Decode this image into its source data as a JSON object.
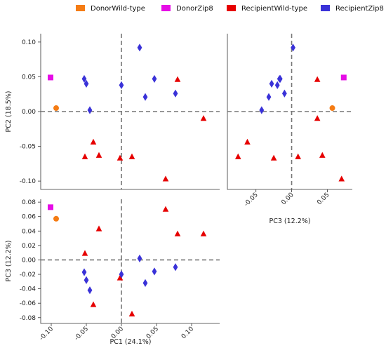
{
  "chart_data": {
    "type": "scatter",
    "legend": {
      "placement": "top",
      "entries": [
        {
          "label": "DonorWild-type",
          "color": "#f57c14",
          "marker": "circle"
        },
        {
          "label": "DonorZip8",
          "color": "#e60de6",
          "marker": "square"
        },
        {
          "label": "RecipientWild-type",
          "color": "#e60000",
          "marker": "triangle"
        },
        {
          "label": "RecipientZip8",
          "color": "#3a32d8",
          "marker": "diamond"
        }
      ]
    },
    "panels": [
      {
        "id": "pc1-pc2",
        "xlabel": "",
        "ylabel": "PC2 (18.5%)",
        "xlim": [
          -0.115,
          0.14
        ],
        "ylim": [
          -0.112,
          0.112
        ],
        "xticks": [],
        "yticks": [
          "-0.10",
          "-0.05",
          "0.00",
          "0.05",
          "0.10"
        ],
        "ytick_values": [
          -0.1,
          -0.05,
          0.0,
          0.05,
          0.1
        ],
        "zero_lines": true
      },
      {
        "id": "pc3-pc2",
        "xlabel": "PC3 (12.2%)",
        "ylabel": "",
        "xlim": [
          -0.09,
          0.085
        ],
        "ylim": [
          -0.112,
          0.112
        ],
        "xticks": [
          "-0.05",
          "0.00",
          "0.05"
        ],
        "xtick_values": [
          -0.05,
          0.0,
          0.05
        ],
        "yticks": [],
        "zero_lines": true
      },
      {
        "id": "pc1-pc3",
        "xlabel": "PC1 (24.1%)",
        "ylabel": "PC3 (12.2%)",
        "xlim": [
          -0.115,
          0.14
        ],
        "ylim": [
          -0.088,
          0.084
        ],
        "xticks": [
          "-0.10",
          "-0.05",
          "0.00",
          "0.05",
          "0.10"
        ],
        "xtick_values": [
          -0.1,
          -0.05,
          0.0,
          0.05,
          0.1
        ],
        "yticks": [
          "-0.08",
          "-0.06",
          "-0.04",
          "-0.02",
          "0.00",
          "0.02",
          "0.04",
          "0.06",
          "0.08"
        ],
        "ytick_values": [
          -0.08,
          -0.06,
          -0.04,
          -0.02,
          0.0,
          0.02,
          0.04,
          0.06,
          0.08
        ],
        "zero_lines": true
      }
    ],
    "samples": [
      {
        "group": "DonorWild-type",
        "pc1": -0.093,
        "pc2": 0.005,
        "pc3": 0.057
      },
      {
        "group": "DonorZip8",
        "pc1": -0.101,
        "pc2": 0.049,
        "pc3": 0.073
      },
      {
        "group": "RecipientWild-type",
        "pc1": 0.08,
        "pc2": 0.046,
        "pc3": 0.036
      },
      {
        "group": "RecipientWild-type",
        "pc1": 0.117,
        "pc2": -0.01,
        "pc3": 0.036
      },
      {
        "group": "RecipientWild-type",
        "pc1": 0.063,
        "pc2": -0.097,
        "pc3": 0.07
      },
      {
        "group": "RecipientWild-type",
        "pc1": -0.032,
        "pc2": -0.063,
        "pc3": 0.043
      },
      {
        "group": "RecipientWild-type",
        "pc1": -0.052,
        "pc2": -0.065,
        "pc3": 0.009
      },
      {
        "group": "RecipientWild-type",
        "pc1": -0.04,
        "pc2": -0.044,
        "pc3": -0.062
      },
      {
        "group": "RecipientWild-type",
        "pc1": -0.002,
        "pc2": -0.067,
        "pc3": -0.025
      },
      {
        "group": "RecipientWild-type",
        "pc1": 0.015,
        "pc2": -0.065,
        "pc3": -0.075
      },
      {
        "group": "RecipientZip8",
        "pc1": 0.026,
        "pc2": 0.092,
        "pc3": 0.002
      },
      {
        "group": "RecipientZip8",
        "pc1": 0.047,
        "pc2": 0.047,
        "pc3": -0.016
      },
      {
        "group": "RecipientZip8",
        "pc1": 0.077,
        "pc2": 0.026,
        "pc3": -0.01
      },
      {
        "group": "RecipientZip8",
        "pc1": 0.034,
        "pc2": 0.021,
        "pc3": -0.032
      },
      {
        "group": "RecipientZip8",
        "pc1": 0.0,
        "pc2": 0.038,
        "pc3": -0.02
      },
      {
        "group": "RecipientZip8",
        "pc1": -0.053,
        "pc2": 0.047,
        "pc3": -0.017
      },
      {
        "group": "RecipientZip8",
        "pc1": -0.05,
        "pc2": 0.04,
        "pc3": -0.028
      },
      {
        "group": "RecipientZip8",
        "pc1": -0.045,
        "pc2": 0.002,
        "pc3": -0.042
      }
    ]
  }
}
